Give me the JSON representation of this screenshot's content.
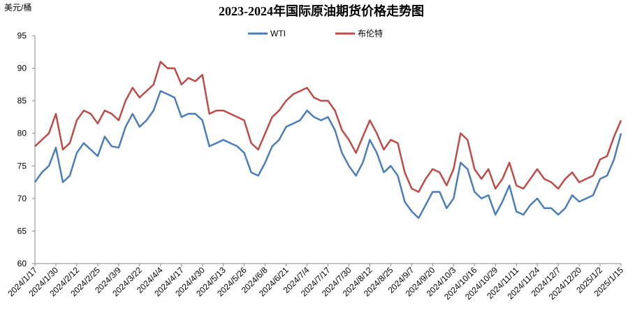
{
  "chart_data": {
    "type": "line",
    "title": "2023-2024年国际原油期货价格走势图",
    "y_label": "美元/桶",
    "categories": [
      "2024/1/17",
      null,
      null,
      "2024/1/30",
      null,
      null,
      "2024/2/12",
      null,
      null,
      "2024/2/25",
      null,
      null,
      "2024/3/9",
      null,
      null,
      "2024/3/22",
      null,
      null,
      "2024/4/4",
      null,
      null,
      "2024/4/17",
      null,
      null,
      "2024/4/30",
      null,
      null,
      "2024/5/13",
      null,
      null,
      "2024/5/26",
      null,
      null,
      "2024/6/8",
      null,
      null,
      "2024/6/21",
      null,
      null,
      "2024/7/4",
      null,
      null,
      "2024/7/17",
      null,
      null,
      "2024/7/30",
      null,
      null,
      "2024/8/12",
      null,
      null,
      "2024/8/25",
      null,
      null,
      "2024/9/7",
      null,
      null,
      "2024/9/20",
      null,
      null,
      "2024/10/3",
      null,
      null,
      "2024/10/16",
      null,
      null,
      "2024/10/29",
      null,
      null,
      "2024/11/11",
      null,
      null,
      "2024/11/24",
      null,
      null,
      "2024/12/7",
      null,
      null,
      "2024/12/20",
      null,
      null,
      "2025/1/2",
      null,
      null,
      "2025/1/15"
    ],
    "series": [
      {
        "name": "WTI",
        "color": "#4a7ebb",
        "values": [
          72.5,
          74,
          75,
          77.8,
          72.5,
          73.5,
          77,
          78.5,
          77.5,
          76.5,
          79.5,
          78,
          77.8,
          81,
          83,
          81,
          82,
          83.5,
          86.5,
          86,
          85.5,
          82.5,
          83,
          83,
          82,
          78,
          78.5,
          79,
          78.5,
          78,
          77,
          74,
          73.5,
          75.5,
          78,
          79,
          81,
          81.5,
          82,
          83.5,
          82.5,
          82,
          82.5,
          80.5,
          77,
          75,
          73.5,
          75.5,
          79,
          77,
          74,
          75,
          73.5,
          69.5,
          68,
          67,
          69,
          71,
          71,
          68.5,
          70,
          75.5,
          74.5,
          71,
          70,
          70.5,
          67.5,
          69.5,
          72,
          68,
          67.5,
          69,
          70,
          68.5,
          68.5,
          67.5,
          68.5,
          70.5,
          69.5,
          70,
          70.5,
          73,
          73.5,
          76,
          80
        ]
      },
      {
        "name": "布伦特",
        "color": "#be4b48",
        "values": [
          78,
          79,
          80,
          83,
          77.5,
          78.5,
          82,
          83.5,
          83,
          81.5,
          83.5,
          83,
          82,
          85,
          87,
          85.5,
          86.5,
          87.5,
          91,
          90,
          90,
          87.5,
          88.5,
          88,
          89,
          83,
          83.5,
          83.5,
          83,
          82.5,
          82,
          78.5,
          77.5,
          80,
          82.5,
          83.5,
          85,
          86,
          86.5,
          87,
          85.5,
          85,
          85,
          83.5,
          80.5,
          79,
          77,
          79.5,
          82,
          80,
          77.5,
          79,
          78.5,
          74,
          71.5,
          71,
          73,
          74.5,
          74,
          72,
          74.5,
          80,
          79,
          74.5,
          73,
          74.5,
          71.5,
          73,
          75.5,
          72,
          71.5,
          73,
          74.5,
          73,
          72.5,
          71.5,
          73,
          74,
          72.5,
          73,
          73.5,
          76,
          76.5,
          79.5,
          82
        ]
      }
    ],
    "ylim": [
      60,
      95
    ],
    "yticks": [
      60,
      65,
      70,
      75,
      80,
      85,
      90,
      95
    ],
    "grid": false,
    "legend": "top"
  }
}
